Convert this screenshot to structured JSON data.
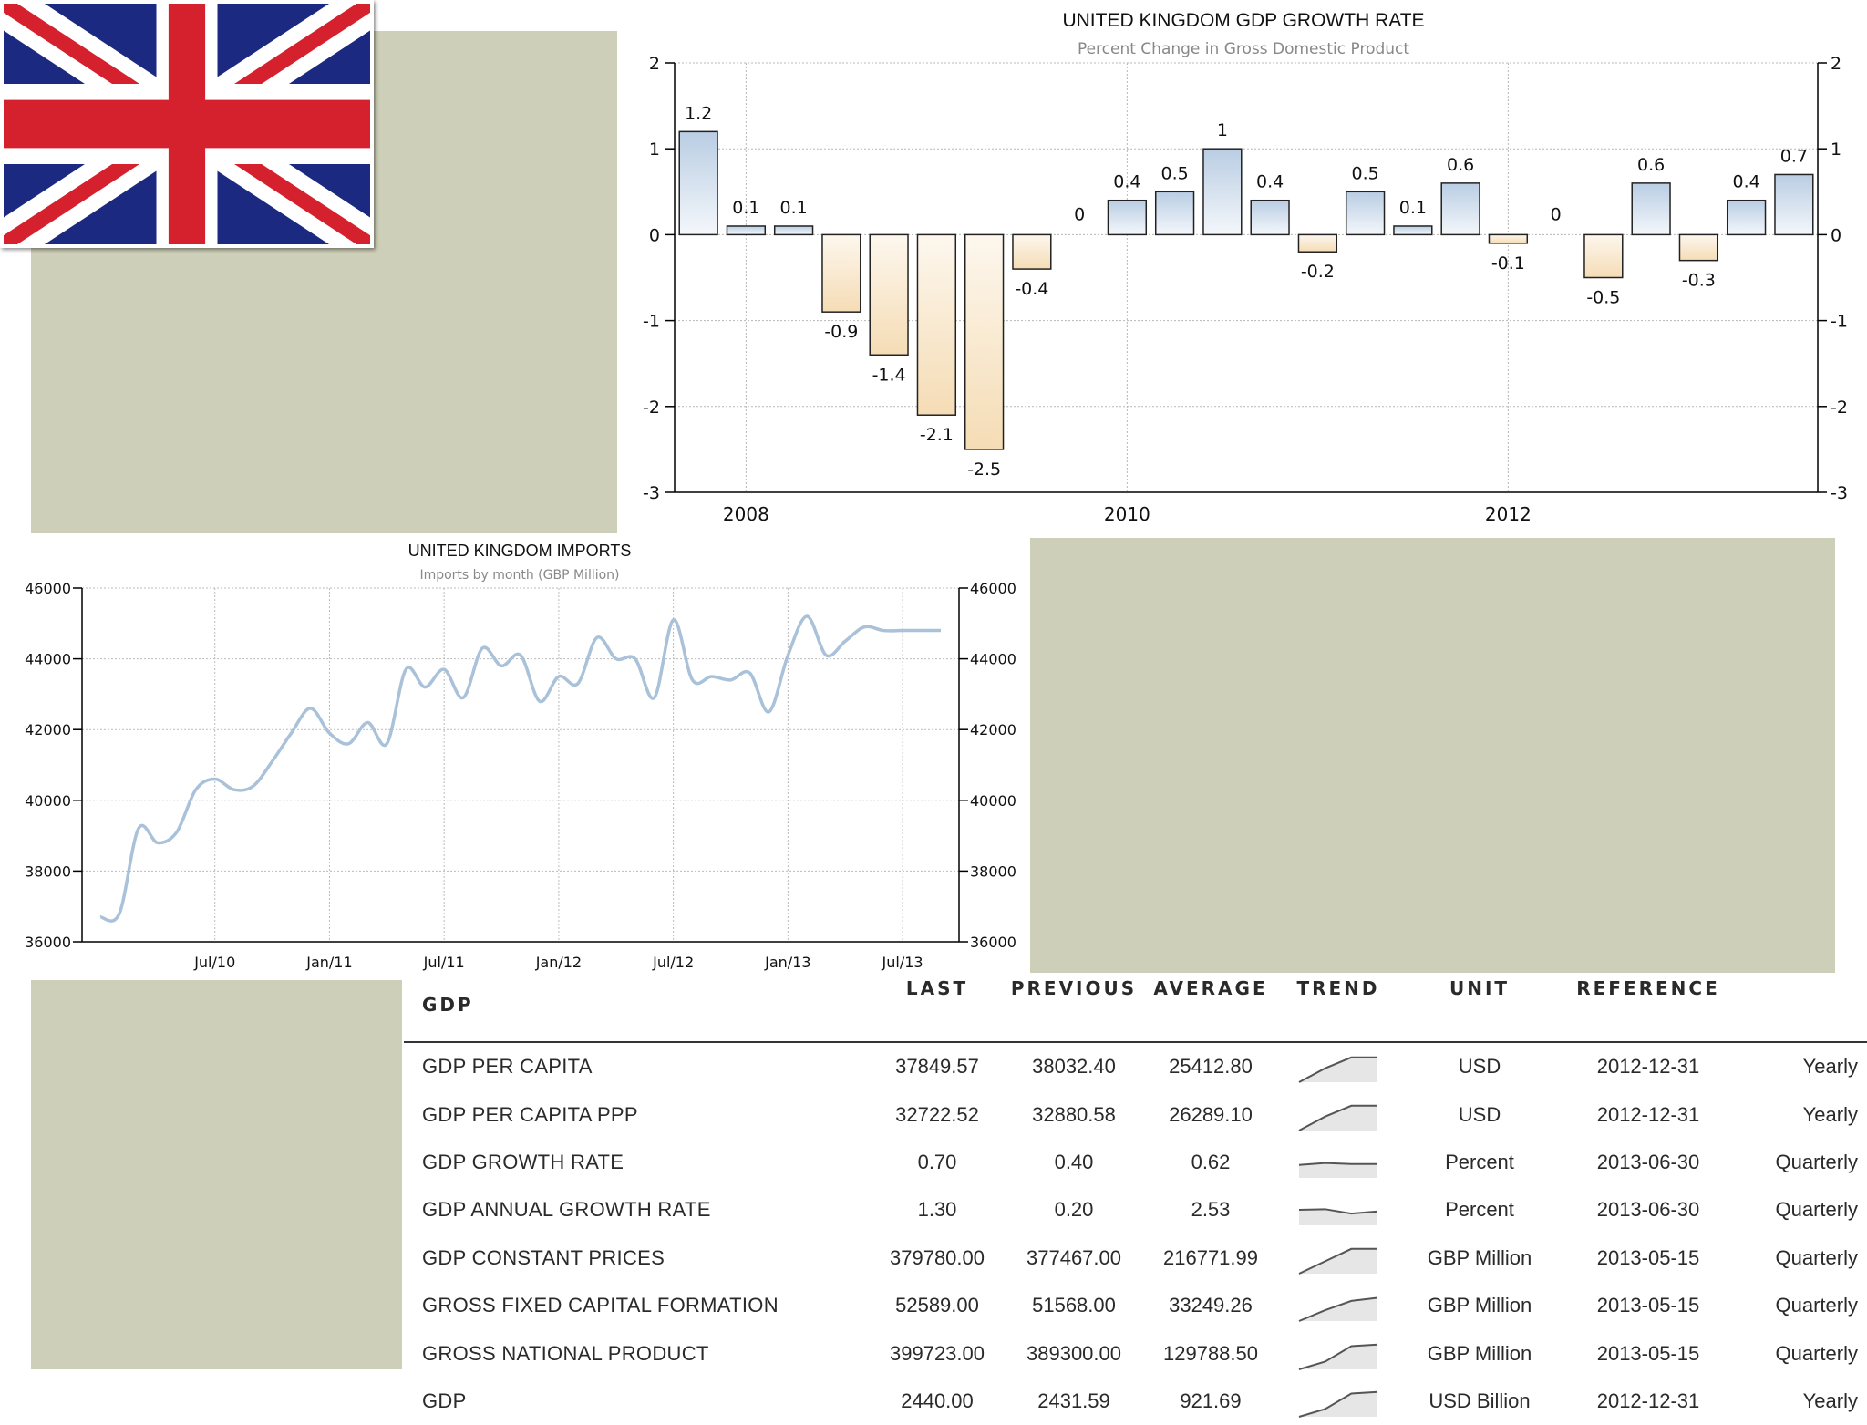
{
  "chart_data": [
    {
      "type": "bar",
      "title": "UNITED KINGDOM GDP GROWTH RATE",
      "subtitle": "Percent Change in Gross Domestic Product",
      "ylim": [
        -3,
        2
      ],
      "yticks": [
        2,
        1,
        0,
        -1,
        -2,
        -3
      ],
      "x_tick_labels": [
        "2008",
        "2010",
        "2012"
      ],
      "x_tick_positions": [
        1.5,
        9.5,
        17.5
      ],
      "values": [
        1.2,
        0.1,
        0.1,
        -0.9,
        -1.4,
        -2.1,
        -2.5,
        -0.4,
        0,
        0.4,
        0.5,
        1,
        0.4,
        -0.2,
        0.5,
        0.1,
        0.6,
        -0.1,
        0,
        -0.5,
        0.6,
        -0.3,
        0.4,
        0.7
      ],
      "data_labels": [
        "1.2",
        "0.1",
        "0.1",
        "-0.9",
        "-1.4",
        "-2.1",
        "-2.5",
        "-0.4",
        "0",
        "0.4",
        "0.5",
        "1",
        "0.4",
        "-0.2",
        "0.5",
        "0.1",
        "0.6",
        "-0.1",
        "0",
        "-0.5",
        "0.6",
        "-0.3",
        "0.4",
        "0.7"
      ],
      "grid": true,
      "colors": {
        "positive": "#b9cde3",
        "negative": "#f5dcb5",
        "axis": "#000000",
        "grid": "#b8b8b8"
      }
    },
    {
      "type": "line",
      "title": "UNITED KINGDOM IMPORTS",
      "subtitle": "Imports by month (GBP Million)",
      "ylim": [
        36000,
        46000
      ],
      "yticks": [
        46000,
        44000,
        42000,
        40000,
        38000,
        36000
      ],
      "x_tick_labels": [
        "Jul/10",
        "Jan/11",
        "Jul/11",
        "Jan/12",
        "Jul/12",
        "Jan/13",
        "Jul/13"
      ],
      "x_tick_positions": [
        6,
        12,
        18,
        24,
        30,
        36,
        42
      ],
      "x": [
        0,
        1,
        2,
        3,
        4,
        5,
        6,
        7,
        8,
        9,
        10,
        11,
        12,
        13,
        14,
        15,
        16,
        17,
        18,
        19,
        20,
        21,
        22,
        23,
        24,
        25,
        26,
        27,
        28,
        29,
        30,
        31,
        32,
        33,
        34,
        35,
        36,
        37,
        38,
        39,
        40,
        41,
        42,
        43,
        44
      ],
      "values": [
        36700,
        36800,
        39200,
        38800,
        39100,
        40300,
        40600,
        40300,
        40400,
        41100,
        41900,
        42600,
        41900,
        41600,
        42200,
        41600,
        43700,
        43200,
        43700,
        42900,
        44300,
        43800,
        44100,
        42800,
        43500,
        43300,
        44600,
        44000,
        44000,
        42900,
        45100,
        43400,
        43500,
        43400,
        43600,
        42500,
        44100,
        45200,
        44100,
        44500,
        44900,
        44800,
        44800,
        44800,
        44800
      ],
      "grid": true,
      "colors": {
        "line": "#a9c1d9",
        "axis": "#000000",
        "grid": "#bbbbbb"
      }
    }
  ],
  "table": {
    "section": "GDP",
    "headers": {
      "last": "LAST",
      "previous": "PREVIOUS",
      "average": "AVERAGE",
      "trend": "TREND",
      "unit": "UNIT",
      "reference": "REFERENCE"
    },
    "rows": [
      {
        "name": "GDP PER CAPITA",
        "last": "37849.57",
        "previous": "38032.40",
        "average": "25412.80",
        "unit": "USD",
        "reference": "2012-12-31",
        "frequency": "Yearly",
        "trend": [
          1,
          0.55,
          0.2,
          0.2
        ]
      },
      {
        "name": "GDP PER CAPITA PPP",
        "last": "32722.52",
        "previous": "32880.58",
        "average": "26289.10",
        "unit": "USD",
        "reference": "2012-12-31",
        "frequency": "Yearly",
        "trend": [
          1,
          0.55,
          0.2,
          0.2
        ]
      },
      {
        "name": "GDP GROWTH RATE",
        "last": "0.70",
        "previous": "0.40",
        "average": "0.62",
        "unit": "Percent",
        "reference": "2013-06-30",
        "frequency": "Quarterly",
        "trend": [
          0.58,
          0.52,
          0.55,
          0.55
        ]
      },
      {
        "name": "GDP ANNUAL GROWTH RATE",
        "last": "1.30",
        "previous": "0.20",
        "average": "2.53",
        "unit": "Percent",
        "reference": "2013-06-30",
        "frequency": "Quarterly",
        "trend": [
          0.5,
          0.48,
          0.62,
          0.55
        ]
      },
      {
        "name": "GDP CONSTANT PRICES",
        "last": "379780.00",
        "previous": "377467.00",
        "average": "216771.99",
        "unit": "GBP Million",
        "reference": "2013-05-15",
        "frequency": "Quarterly",
        "trend": [
          1,
          0.6,
          0.2,
          0.2
        ]
      },
      {
        "name": "GROSS FIXED CAPITAL FORMATION",
        "last": "52589.00",
        "previous": "51568.00",
        "average": "33249.26",
        "unit": "GBP Million",
        "reference": "2013-05-15",
        "frequency": "Quarterly",
        "trend": [
          1,
          0.65,
          0.35,
          0.25
        ]
      },
      {
        "name": "GROSS NATIONAL PRODUCT",
        "last": "399723.00",
        "previous": "389300.00",
        "average": "129788.50",
        "unit": "GBP Million",
        "reference": "2013-05-15",
        "frequency": "Quarterly",
        "trend": [
          1,
          0.75,
          0.25,
          0.2
        ]
      },
      {
        "name": "GDP",
        "last": "2440.00",
        "previous": "2431.59",
        "average": "921.69",
        "unit": "USD Billion",
        "reference": "2012-12-31",
        "frequency": "Yearly",
        "trend": [
          1,
          0.75,
          0.25,
          0.2
        ]
      }
    ]
  },
  "colors": {
    "placeholder": "#cdcfb8",
    "flag_blue": "#1b2a80",
    "flag_red": "#d5202e",
    "flag_white": "#ffffff"
  },
  "icons": {
    "flag": "union-jack-flag-icon",
    "trend": "trend-sparkline-icon"
  }
}
